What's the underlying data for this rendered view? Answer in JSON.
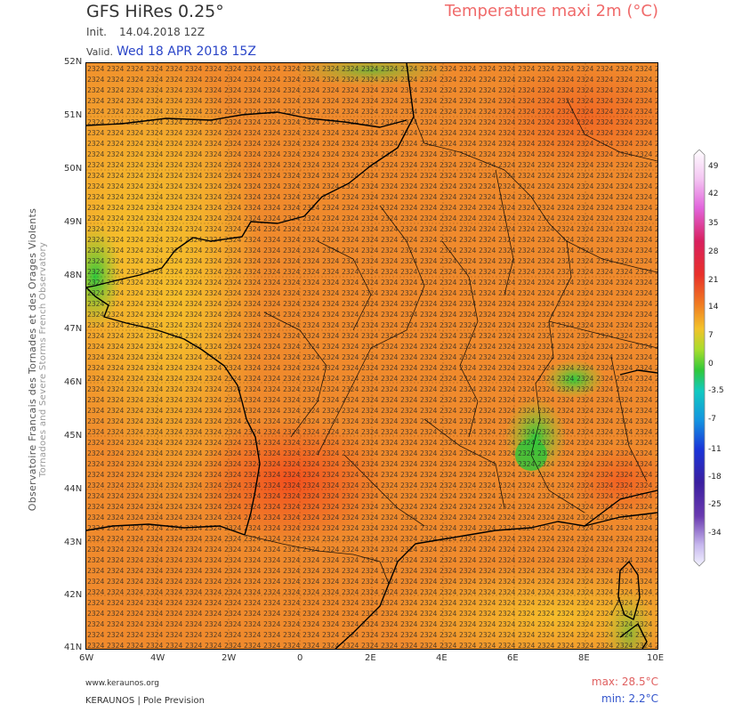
{
  "header": {
    "model": "GFS HiRes 0.25°",
    "product": "Temperature maxi 2m (°C)",
    "init_label": "Init.",
    "init_value": "14.04.2018 12Z",
    "valid_label": "Valid.",
    "valid_value": "Wed 18 APR 2018 15Z"
  },
  "side_credit": {
    "line1": "Observatoire Francais des Tornades et des Orages Violents",
    "line2": "Tornadoes and Severe Storms French Observatory"
  },
  "axes": {
    "lat_labels": [
      "52N",
      "51N",
      "50N",
      "49N",
      "48N",
      "47N",
      "46N",
      "45N",
      "44N",
      "43N",
      "42N",
      "41N"
    ],
    "lon_labels": [
      "6W",
      "4W",
      "2W",
      "0",
      "2E",
      "4E",
      "6E",
      "8E",
      "10E"
    ]
  },
  "footer": {
    "site": "www.keraunos.org",
    "brand": "KERAUNOS | Pole Prevision",
    "max_label": "max:",
    "max_value": "28.5°C",
    "min_label": "min:",
    "min_value": "2.2°C"
  },
  "colorbar": {
    "labels": [
      "49",
      "42",
      "35",
      "28",
      "21",
      "14",
      "7",
      "0",
      "-3.5",
      "-7",
      "-11",
      "-18",
      "-25",
      "-34"
    ],
    "colors": [
      "#ffffff",
      "#f7c6f4",
      "#e36adf",
      "#d6205e",
      "#e8302a",
      "#f07a22",
      "#f3c22a",
      "#a8dd2c",
      "#30c83a",
      "#11c9c0",
      "#1494e0",
      "#1a34d8",
      "#3b1fa0",
      "#5e2aa8",
      "#b2a4e8",
      "#eef0ff"
    ]
  },
  "map": {
    "region": "France",
    "grid_note": "temperature values printed in a dense 0.25° grid over the map"
  }
}
